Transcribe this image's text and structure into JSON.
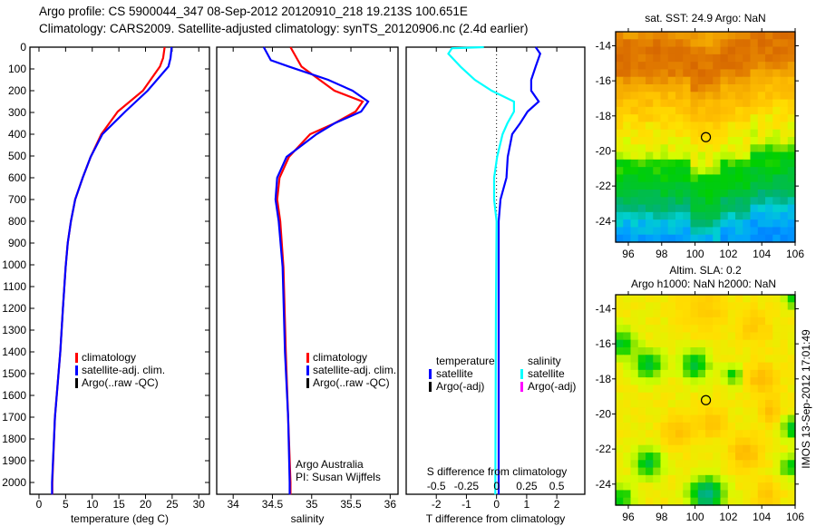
{
  "header": {
    "line1": "Argo profile: CS 5900044_347 08-Sep-2012 20120910_218 19.213S 100.651E",
    "line2": "Climatology: CARS2009. Satellite-adjusted climatology: synTS_20120906.nc (2.4d earlier)"
  },
  "side_label": "IMOS 13-Sep-2012 17:01:49",
  "colors": {
    "climatology": "#ff0000",
    "satellite": "#0000ff",
    "argo": "#000000",
    "sal_satellite": "#00ffff",
    "sal_argo": "#ff00ff"
  },
  "chart_data": [
    {
      "id": "temperature",
      "type": "line",
      "xlabel": "temperature (deg C)",
      "ylabel": "",
      "xlim": [
        -1.7,
        32
      ],
      "ylim": [
        2055,
        0
      ],
      "xticks": [
        "0",
        "5",
        "10",
        "15",
        "20",
        "25",
        "30"
      ],
      "yticks": [
        "0",
        "100",
        "200",
        "300",
        "400",
        "500",
        "600",
        "700",
        "800",
        "900",
        "1000",
        "1100",
        "1200",
        "1300",
        "1400",
        "1500",
        "1600",
        "1700",
        "1800",
        "1900",
        "2000"
      ],
      "legend": [
        "climatology",
        "satellite-adj. clim.",
        "Argo(..raw -QC)"
      ],
      "series": [
        {
          "name": "climatology",
          "color": "#ff0000",
          "depth": [
            0,
            50,
            89,
            200,
            296,
            400,
            504,
            600,
            700,
            800,
            900,
            1010,
            1200,
            1400,
            1700,
            2000,
            2055
          ],
          "values": [
            23.6,
            23.3,
            22.7,
            19.5,
            14.8,
            11.7,
            9.7,
            8.2,
            6.8,
            6.0,
            5.4,
            5.0,
            4.5,
            4.0,
            3.0,
            2.5,
            2.5
          ]
        },
        {
          "name": "satellite-adj. clim.",
          "color": "#0000ff",
          "depth": [
            0,
            50,
            89,
            200,
            296,
            400,
            504,
            600,
            700,
            800,
            900,
            1010,
            1200,
            1400,
            1700,
            2000,
            2055
          ],
          "values": [
            24.9,
            24.7,
            24.3,
            20.4,
            16.2,
            11.9,
            9.7,
            8.2,
            6.8,
            6.0,
            5.4,
            5.0,
            4.5,
            4.0,
            3.0,
            2.45,
            2.45
          ]
        }
      ]
    },
    {
      "id": "salinity",
      "type": "line",
      "xlabel": "salinity",
      "xlim": [
        33.79,
        36.1
      ],
      "ylim": [
        2055,
        0
      ],
      "xticks": [
        "34",
        "34.5",
        "35",
        "35.5",
        "36"
      ],
      "legend": [
        "climatology",
        "satellite-adj. clim.",
        "Argo(..raw -QC)"
      ],
      "annotation": [
        "Argo Australia",
        "PI: Susan Wijffels"
      ],
      "series": [
        {
          "name": "climatology",
          "color": "#ff0000",
          "depth": [
            0,
            89,
            200,
            250,
            296,
            350,
            400,
            504,
            600,
            700,
            800,
            1010,
            1400,
            1700,
            2000,
            2055
          ],
          "values": [
            34.73,
            34.87,
            35.29,
            35.65,
            35.56,
            35.29,
            34.98,
            34.71,
            34.59,
            34.56,
            34.6,
            34.64,
            34.67,
            34.7,
            34.73,
            34.73
          ]
        },
        {
          "name": "satellite-adj. clim.",
          "color": "#0000ff",
          "depth": [
            0,
            60,
            89,
            150,
            200,
            250,
            296,
            350,
            400,
            504,
            600,
            700,
            800,
            1010,
            1400,
            1700,
            2000,
            2055
          ],
          "values": [
            34.39,
            34.48,
            34.71,
            35.21,
            35.52,
            35.72,
            35.63,
            35.29,
            35.06,
            34.68,
            34.56,
            34.54,
            34.58,
            34.63,
            34.66,
            34.7,
            34.72,
            34.72
          ]
        }
      ]
    },
    {
      "id": "difference",
      "type": "line",
      "xlabel": "T difference from climatology",
      "xlabel2": "S difference from climatology",
      "xlim": [
        -3,
        2.93
      ],
      "ylim": [
        2055,
        0
      ],
      "xticks": [
        "-2",
        "-1",
        "0",
        "1",
        "2"
      ],
      "xticks2": [
        "-0.5",
        "-0.25",
        "0",
        "0.25",
        "0.5"
      ],
      "legend_titles": [
        "temperature",
        "salinity"
      ],
      "legend": [
        "satellite",
        "Argo(-adj)",
        "satellite",
        "Argo(-adj)"
      ],
      "series": [
        {
          "name": "temperature satellite",
          "color": "#0000ff",
          "units": "T",
          "depth": [
            0,
            30,
            89,
            150,
            200,
            250,
            296,
            350,
            400,
            504,
            600,
            700,
            800,
            1200,
            2055
          ],
          "values": [
            1.3,
            1.45,
            1.3,
            1.15,
            1.15,
            1.4,
            1.03,
            0.78,
            0.52,
            0.37,
            0.33,
            0.13,
            0.07,
            0.07,
            0.07
          ]
        },
        {
          "name": "salinity satellite",
          "color": "#00ffff",
          "units": "S",
          "depth": [
            0,
            5,
            30,
            89,
            150,
            200,
            250,
            296,
            350,
            400,
            504,
            600,
            700,
            800,
            1200,
            2055
          ],
          "values": [
            -0.105,
            -0.37,
            -0.4,
            -0.3,
            -0.18,
            -0.04,
            0.145,
            0.145,
            0.09,
            0.05,
            0.005,
            -0.02,
            -0.02,
            0.0,
            -0.005,
            -0.01
          ]
        }
      ]
    },
    {
      "id": "sst_map",
      "type": "heatmap",
      "title": "sat. SST: 24.9 Argo: NaN",
      "xlim": [
        95.24,
        106.0
      ],
      "ylim": [
        -25.2,
        -13.2
      ],
      "xticks": [
        "96",
        "98",
        "100",
        "102",
        "104",
        "106"
      ],
      "yticks": [
        "-14",
        "-16",
        "-18",
        "-20",
        "-22",
        "-24"
      ],
      "marker": {
        "lon": 100.651,
        "lat": -19.213
      }
    },
    {
      "id": "sla_map",
      "type": "heatmap",
      "title": "Altim. SLA: 0.2",
      "subtitle": "Argo h1000: NaN h2000: NaN",
      "xlim": [
        95.24,
        106.0
      ],
      "ylim": [
        -25.2,
        -13.2
      ],
      "xticks": [
        "96",
        "98",
        "100",
        "102",
        "104",
        "106"
      ],
      "yticks": [
        "-14",
        "-16",
        "-18",
        "-20",
        "-22",
        "-24"
      ],
      "marker": {
        "lon": 100.651,
        "lat": -19.213
      }
    }
  ]
}
